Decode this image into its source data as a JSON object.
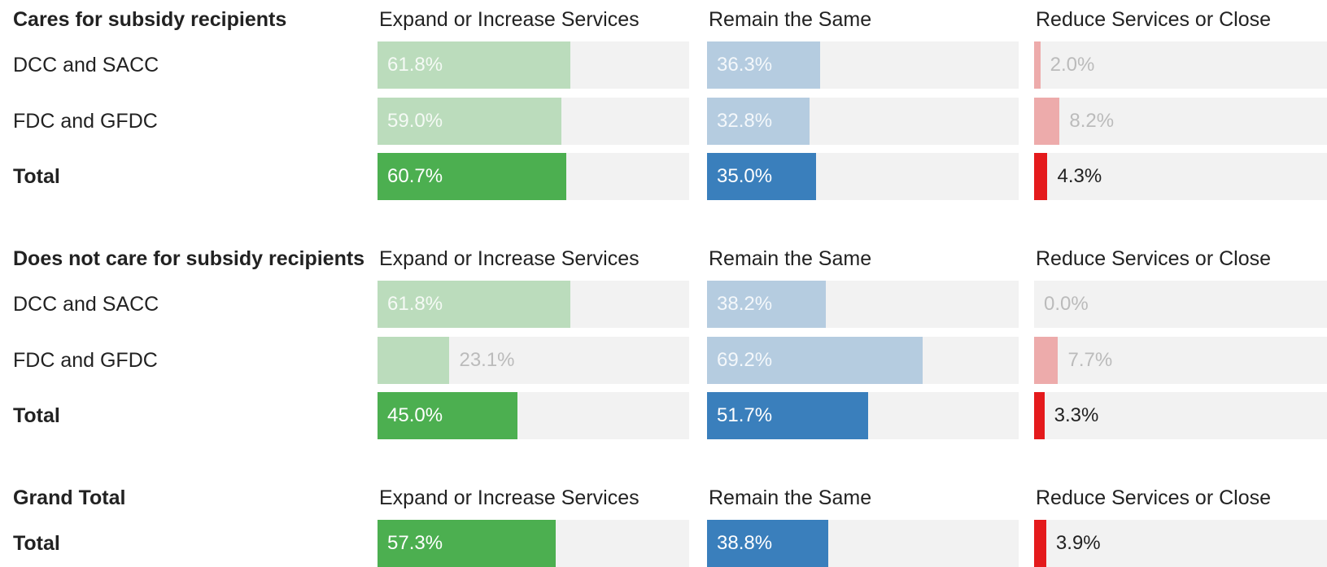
{
  "colors": [
    "#4caf50",
    "#3a7fbc",
    "#e41a1c"
  ],
  "groups": [
    {
      "title": "Cares for subsidy recipients",
      "columns": [
        "Expand or Increase Services",
        "Remain the Same",
        "Reduce Services or Close"
      ],
      "rows": [
        {
          "label": "DCC and SACC",
          "values": [
            61.8,
            36.3,
            2.0
          ],
          "value_labels": [
            "61.8%",
            "36.3%",
            "2.0%"
          ]
        },
        {
          "label": "FDC and GFDC",
          "values": [
            59.0,
            32.8,
            8.2
          ],
          "value_labels": [
            "59.0%",
            "32.8%",
            "8.2%"
          ]
        },
        {
          "label": "Total",
          "values": [
            60.7,
            35.0,
            4.3
          ],
          "value_labels": [
            "60.7%",
            "35.0%",
            "4.3%"
          ]
        }
      ]
    },
    {
      "title": "Does not care for subsidy recipients",
      "columns": [
        "Expand or Increase Services",
        "Remain the Same",
        "Reduce Services or Close"
      ],
      "rows": [
        {
          "label": "DCC and SACC",
          "values": [
            61.8,
            38.2,
            0.0
          ],
          "value_labels": [
            "61.8%",
            "38.2%",
            "0.0%"
          ]
        },
        {
          "label": "FDC and GFDC",
          "values": [
            23.1,
            69.2,
            7.7
          ],
          "value_labels": [
            "23.1%",
            "69.2%",
            "7.7%"
          ]
        },
        {
          "label": "Total",
          "values": [
            45.0,
            51.7,
            3.3
          ],
          "value_labels": [
            "45.0%",
            "51.7%",
            "3.3%"
          ]
        }
      ]
    },
    {
      "title": "Grand Total",
      "columns": [
        "Expand or Increase Services",
        "Remain the Same",
        "Reduce Services or Close"
      ],
      "rows": [
        {
          "label": "Total",
          "values": [
            57.3,
            38.8,
            3.9
          ],
          "value_labels": [
            "57.3%",
            "38.8%",
            "3.9%"
          ]
        }
      ]
    }
  ]
}
